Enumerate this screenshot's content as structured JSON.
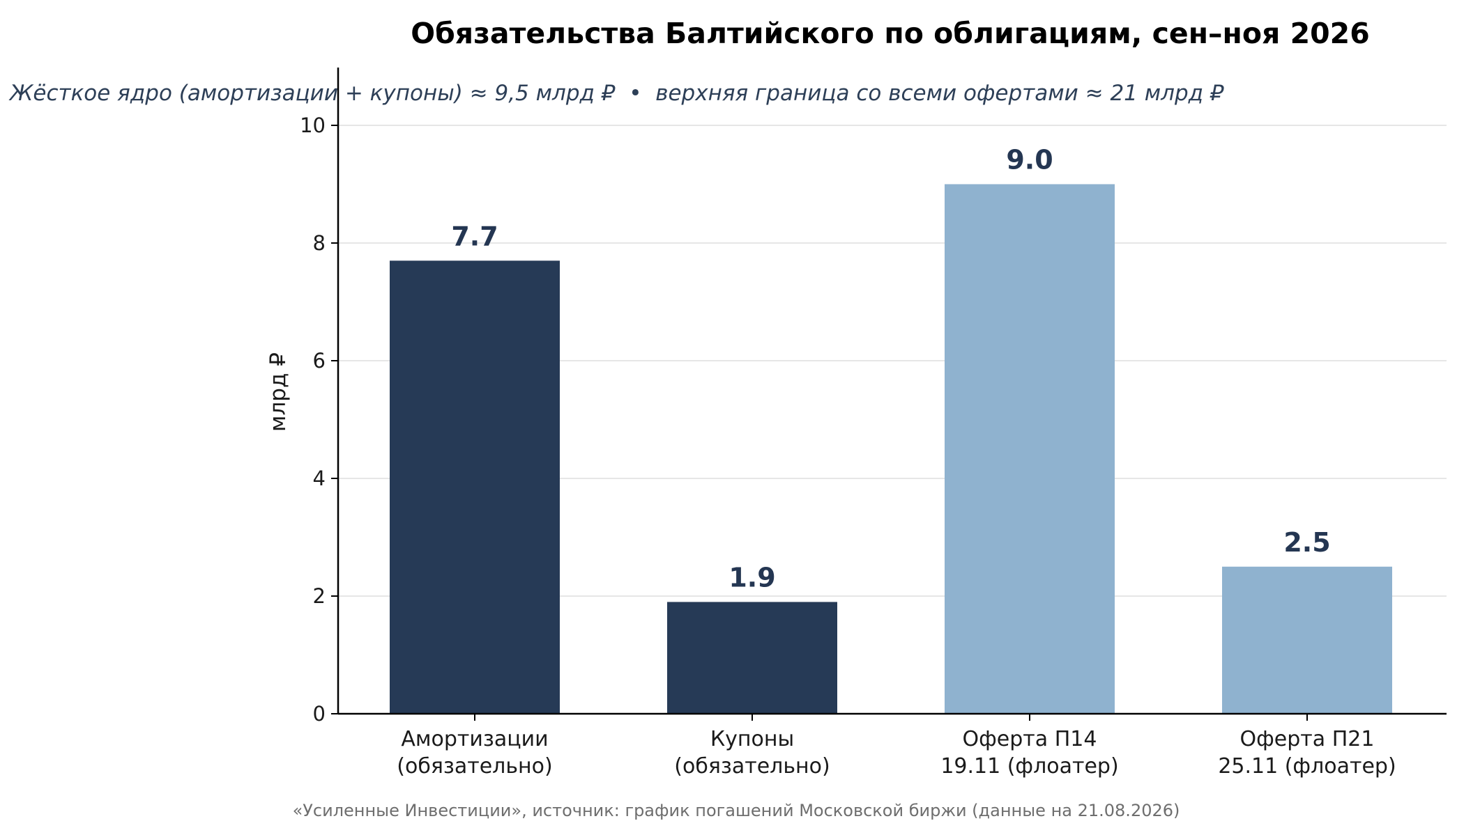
{
  "chart_data": {
    "type": "bar",
    "title": "Обязательства Балтийского по облигациям, сен–ноя 2026",
    "subtitle": "Жёсткое ядро (амортизации + купоны) ≈ 9,5 млрд ₽  •  верхняя граница со всеми офертами ≈ 21 млрд ₽",
    "xlabel": "",
    "ylabel": "млрд ₽",
    "ylim": [
      0,
      10
    ],
    "yticks": [
      "0",
      "2",
      "4",
      "6",
      "8",
      "10"
    ],
    "grid": "horizontal",
    "categories": [
      [
        "Амортизации",
        "(обязательно)"
      ],
      [
        "Купоны",
        "(обязательно)"
      ],
      [
        "Оферта П14",
        "19.11 (флоатер)"
      ],
      [
        "Оферта П21",
        "25.11 (флоатер)"
      ]
    ],
    "values": [
      7.7,
      1.9,
      9.0,
      2.5
    ],
    "value_labels": [
      "7.7",
      "1.9",
      "9.0",
      "2.5"
    ],
    "colors": [
      "#263a56",
      "#263a56",
      "#8fb2cf",
      "#8fb2cf"
    ],
    "footer": "«Усиленные Инвестиции», источник: график погашений Московской биржи (данные на 21.08.2026)"
  }
}
